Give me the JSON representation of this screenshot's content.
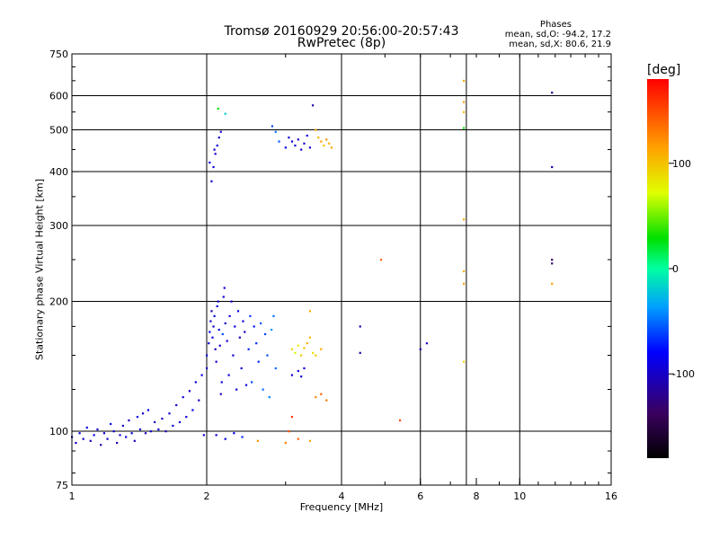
{
  "header": {
    "title": "Tromsø 20160929 20:56:00-20:57:43",
    "subtitle": "RwPretec (8p)",
    "phase_title": "Phases",
    "stat_o": "mean, sd,O: -94.2, 17.2",
    "stat_x": "mean, sd,X: 80.6, 21.9"
  },
  "colorbar": {
    "title": "[deg]",
    "ticks": [
      {
        "value": 100,
        "label": "100"
      },
      {
        "value": 0,
        "label": "0"
      },
      {
        "value": -100,
        "label": "-100"
      }
    ],
    "range": [
      -180,
      180
    ]
  },
  "chart_data": {
    "type": "scatter",
    "xlabel": "Frequency [MHz]",
    "ylabel": "Stationary phase Virtual Height [km]",
    "xscale": "log",
    "yscale": "log",
    "xlim": [
      1,
      16
    ],
    "ylim": [
      75,
      750
    ],
    "xticks": [
      {
        "value": 1,
        "label": "1"
      },
      {
        "value": 2,
        "label": "2"
      },
      {
        "value": 4,
        "label": "4"
      },
      {
        "value": 6,
        "label": "6"
      },
      {
        "value": 8,
        "label": "8"
      },
      {
        "value": 10,
        "label": "10"
      },
      {
        "value": 16,
        "label": "16"
      }
    ],
    "yticks": [
      {
        "value": 75,
        "label": "75"
      },
      {
        "value": 100,
        "label": "100"
      },
      {
        "value": 200,
        "label": "200"
      },
      {
        "value": 300,
        "label": "300"
      },
      {
        "value": 400,
        "label": "400"
      },
      {
        "value": 500,
        "label": "500"
      },
      {
        "value": 600,
        "label": "600"
      },
      {
        "value": 750,
        "label": "750"
      }
    ],
    "xgrid": [
      2,
      4,
      6,
      7.6,
      10
    ],
    "ygrid": [
      100,
      200,
      300,
      400,
      500,
      600
    ],
    "colorscale": "phase [deg], -180 to 180",
    "points": [
      [
        1.0,
        97,
        -95
      ],
      [
        1.02,
        94,
        -100
      ],
      [
        1.04,
        99,
        -92
      ],
      [
        1.06,
        96,
        -98
      ],
      [
        1.08,
        102,
        -90
      ],
      [
        1.1,
        95,
        -105
      ],
      [
        1.12,
        98,
        -88
      ],
      [
        1.14,
        101,
        -95
      ],
      [
        1.16,
        93,
        -110
      ],
      [
        1.18,
        99,
        -96
      ],
      [
        1.2,
        96,
        -102
      ],
      [
        1.22,
        104,
        -85
      ],
      [
        1.24,
        100,
        -97
      ],
      [
        1.26,
        94,
        -108
      ],
      [
        1.28,
        98,
        -93
      ],
      [
        1.3,
        103,
        -99
      ],
      [
        1.32,
        97,
        -91
      ],
      [
        1.34,
        106,
        -104
      ],
      [
        1.36,
        99,
        -95
      ],
      [
        1.38,
        95,
        -100
      ],
      [
        1.4,
        108,
        -90
      ],
      [
        1.42,
        101,
        -97
      ],
      [
        1.44,
        110,
        -95
      ],
      [
        1.46,
        99,
        -103
      ],
      [
        1.48,
        112,
        -88
      ],
      [
        1.5,
        100,
        -96
      ],
      [
        1.53,
        105,
        -100
      ],
      [
        1.56,
        101,
        -92
      ],
      [
        1.59,
        107,
        -98
      ],
      [
        1.62,
        100,
        -105
      ],
      [
        1.65,
        110,
        -94
      ],
      [
        1.68,
        103,
        -90
      ],
      [
        1.71,
        115,
        -97
      ],
      [
        1.74,
        105,
        -101
      ],
      [
        1.77,
        120,
        -93
      ],
      [
        1.8,
        108,
        -96
      ],
      [
        1.83,
        124,
        -99
      ],
      [
        1.86,
        112,
        -88
      ],
      [
        1.89,
        130,
        -95
      ],
      [
        1.92,
        118,
        -102
      ],
      [
        1.95,
        135,
        -90
      ],
      [
        1.97,
        98,
        -96
      ],
      [
        2.0,
        140,
        -100
      ],
      [
        2.0,
        150,
        -92
      ],
      [
        2.02,
        160,
        -97
      ],
      [
        2.03,
        170,
        -85
      ],
      [
        2.04,
        180,
        -95
      ],
      [
        2.05,
        190,
        -110
      ],
      [
        2.06,
        165,
        -90
      ],
      [
        2.07,
        175,
        -98
      ],
      [
        2.08,
        185,
        -94
      ],
      [
        2.09,
        155,
        -104
      ],
      [
        2.1,
        145,
        -96
      ],
      [
        2.11,
        195,
        -88
      ],
      [
        2.12,
        200,
        -100
      ],
      [
        2.13,
        172,
        -92
      ],
      [
        2.14,
        158,
        -99
      ],
      [
        2.15,
        122,
        -101
      ],
      [
        2.16,
        130,
        -95
      ],
      [
        2.17,
        168,
        -60
      ],
      [
        2.18,
        205,
        -95
      ],
      [
        2.19,
        215,
        -90
      ],
      [
        2.2,
        178,
        -97
      ],
      [
        2.22,
        162,
        -99
      ],
      [
        2.24,
        135,
        -92
      ],
      [
        2.25,
        185,
        -98
      ],
      [
        2.27,
        200,
        -100
      ],
      [
        2.29,
        150,
        -95
      ],
      [
        2.31,
        175,
        -88
      ],
      [
        2.33,
        125,
        -97
      ],
      [
        2.35,
        190,
        -93
      ],
      [
        2.37,
        165,
        -100
      ],
      [
        2.39,
        140,
        -96
      ],
      [
        2.41,
        180,
        -90
      ],
      [
        2.43,
        170,
        -102
      ],
      [
        2.45,
        128,
        -95
      ],
      [
        2.48,
        155,
        -70
      ],
      [
        2.5,
        185,
        -65
      ],
      [
        2.52,
        130,
        -60
      ],
      [
        2.55,
        175,
        -75
      ],
      [
        2.58,
        160,
        -68
      ],
      [
        2.61,
        145,
        -72
      ],
      [
        2.64,
        178,
        -55
      ],
      [
        2.67,
        125,
        -50
      ],
      [
        2.7,
        168,
        -62
      ],
      [
        2.73,
        150,
        -58
      ],
      [
        2.76,
        120,
        -45
      ],
      [
        2.79,
        172,
        -40
      ],
      [
        2.82,
        185,
        -48
      ],
      [
        2.85,
        140,
        -52
      ],
      [
        2.1,
        98,
        -95
      ],
      [
        2.2,
        96,
        -90
      ],
      [
        2.3,
        99,
        -85
      ],
      [
        2.4,
        97,
        -70
      ],
      [
        2.6,
        95,
        120
      ],
      [
        3.0,
        94,
        130
      ],
      [
        3.2,
        96,
        140
      ],
      [
        3.4,
        95,
        110
      ],
      [
        3.05,
        100,
        150
      ],
      [
        3.1,
        108,
        160
      ],
      [
        2.05,
        380,
        -95
      ],
      [
        2.07,
        410,
        -90
      ],
      [
        2.09,
        440,
        -98
      ],
      [
        2.11,
        460,
        -92
      ],
      [
        2.13,
        480,
        -100
      ],
      [
        2.15,
        495,
        -96
      ],
      [
        2.03,
        420,
        -88
      ],
      [
        2.12,
        560,
        30
      ],
      [
        2.2,
        545,
        -20
      ],
      [
        2.08,
        450,
        -94
      ],
      [
        2.8,
        510,
        -60
      ],
      [
        2.85,
        495,
        -50
      ],
      [
        2.9,
        470,
        -55
      ],
      [
        3.0,
        455,
        -90
      ],
      [
        3.05,
        480,
        -95
      ],
      [
        3.1,
        470,
        -98
      ],
      [
        3.15,
        460,
        -92
      ],
      [
        3.2,
        475,
        -100
      ],
      [
        3.25,
        450,
        -94
      ],
      [
        3.3,
        465,
        -96
      ],
      [
        3.35,
        485,
        -90
      ],
      [
        3.4,
        455,
        -99
      ],
      [
        3.45,
        570,
        -110
      ],
      [
        3.5,
        500,
        110
      ],
      [
        3.55,
        480,
        105
      ],
      [
        3.6,
        470,
        115
      ],
      [
        3.65,
        460,
        100
      ],
      [
        3.7,
        475,
        120
      ],
      [
        3.75,
        465,
        108
      ],
      [
        3.8,
        455,
        112
      ],
      [
        3.1,
        155,
        90
      ],
      [
        3.15,
        152,
        70
      ],
      [
        3.2,
        158,
        80
      ],
      [
        3.25,
        150,
        95
      ],
      [
        3.3,
        156,
        100
      ],
      [
        3.35,
        160,
        110
      ],
      [
        3.4,
        165,
        105
      ],
      [
        3.45,
        152,
        85
      ],
      [
        3.5,
        150,
        95
      ],
      [
        3.6,
        155,
        110
      ],
      [
        3.1,
        135,
        -95
      ],
      [
        3.2,
        138,
        -90
      ],
      [
        3.25,
        134,
        -98
      ],
      [
        3.3,
        140,
        -92
      ],
      [
        3.4,
        190,
        110
      ],
      [
        3.5,
        120,
        125
      ],
      [
        3.6,
        122,
        140
      ],
      [
        3.7,
        118,
        130
      ],
      [
        4.4,
        175,
        -110
      ],
      [
        4.4,
        152,
        -115
      ],
      [
        4.9,
        250,
        140
      ],
      [
        5.4,
        106,
        150
      ],
      [
        6.2,
        160,
        -105
      ],
      [
        6.0,
        155,
        -110
      ],
      [
        7.5,
        650,
        110
      ],
      [
        7.5,
        580,
        115
      ],
      [
        7.5,
        550,
        105
      ],
      [
        7.5,
        505,
        30
      ],
      [
        7.5,
        310,
        110
      ],
      [
        7.5,
        235,
        110
      ],
      [
        7.5,
        220,
        115
      ],
      [
        7.5,
        145,
        90
      ],
      [
        11.8,
        610,
        -120
      ],
      [
        11.8,
        410,
        -110
      ],
      [
        11.8,
        250,
        -140
      ],
      [
        11.8,
        245,
        -130
      ],
      [
        11.8,
        220,
        115
      ]
    ]
  }
}
